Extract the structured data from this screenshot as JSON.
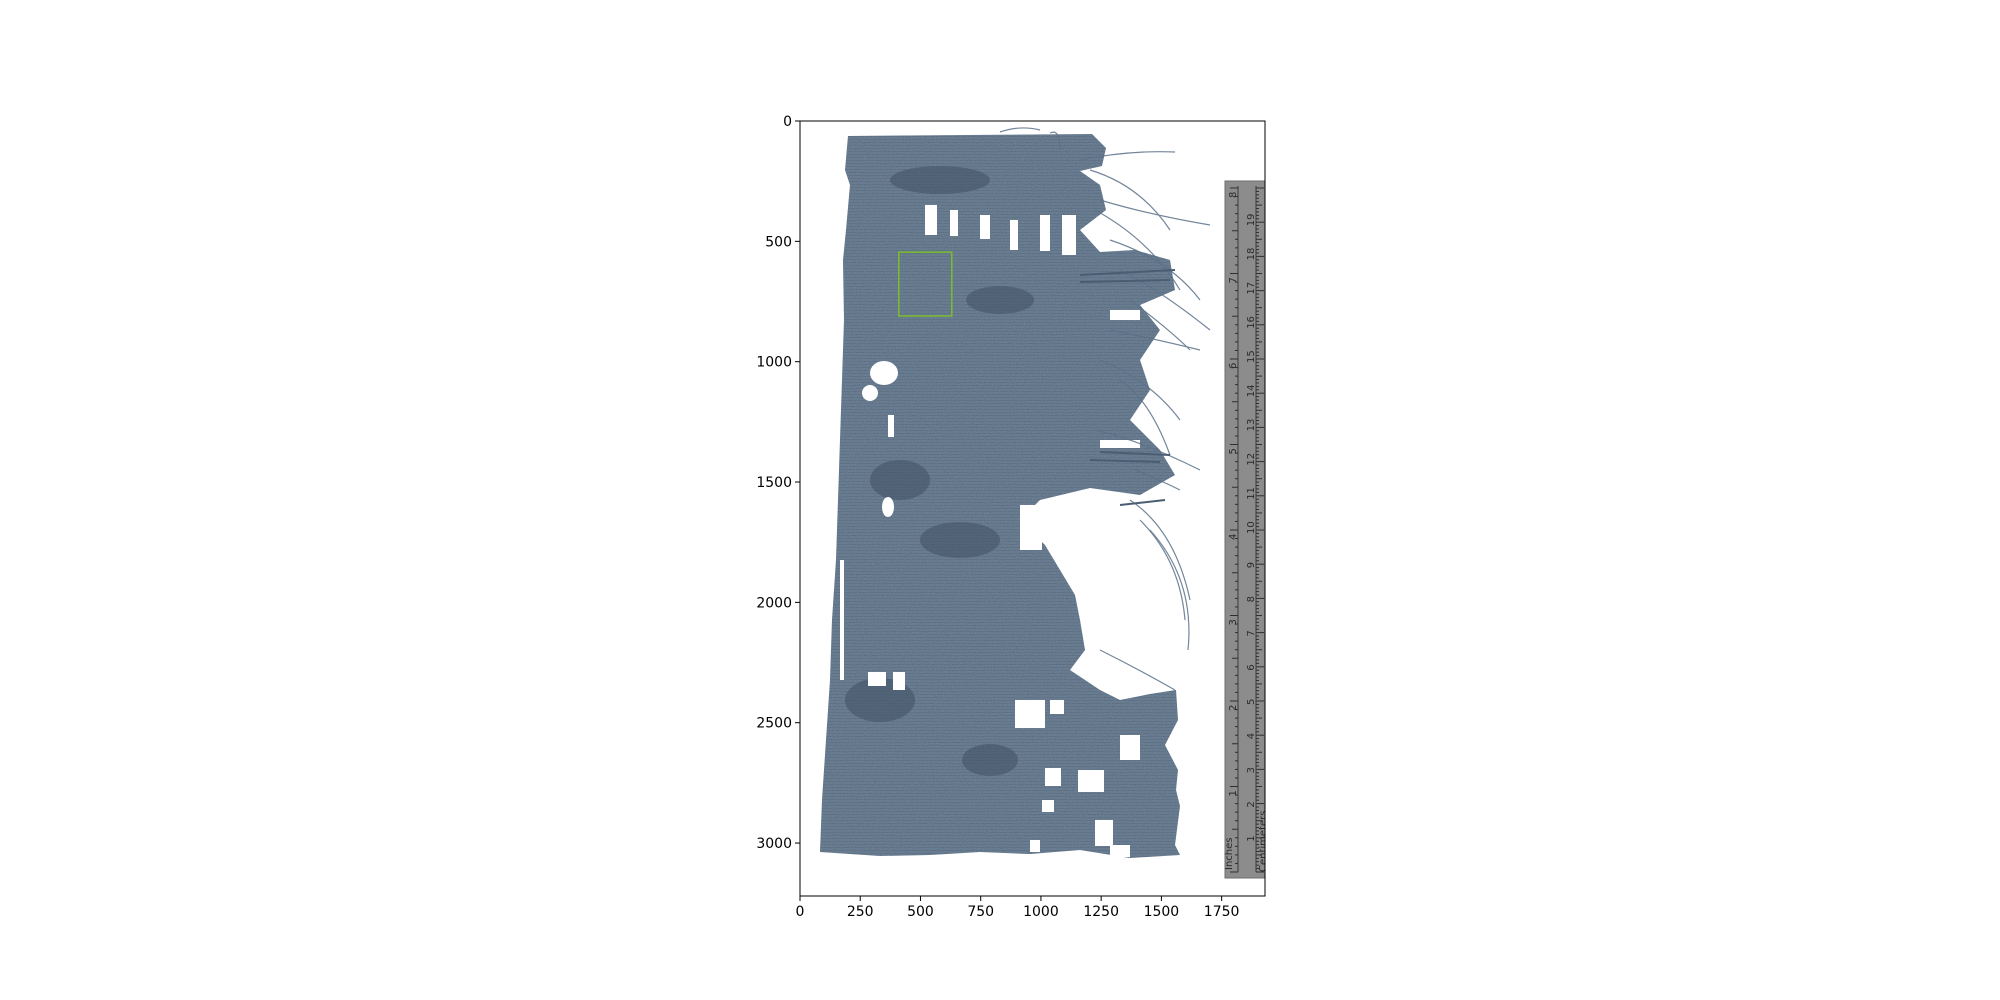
{
  "figure": {
    "x_axis": {
      "range": [
        0,
        1930
      ],
      "ticks": [
        0,
        250,
        500,
        750,
        1000,
        1250,
        1500,
        1750
      ]
    },
    "y_axis": {
      "range": [
        0,
        3220
      ],
      "inverted": true,
      "ticks": [
        0,
        500,
        1000,
        1500,
        2000,
        2500,
        3000
      ]
    },
    "highlight_box": {
      "x": [
        410,
        630
      ],
      "y": [
        545,
        810
      ],
      "color": "#7dbb2e"
    },
    "colors": {
      "papyrus": "#5b7189",
      "papyrus_dark": "#44566b",
      "ruler": "#8a8a8a"
    },
    "ruler": {
      "inches_label": "Inches",
      "centimeters_label": "Centimeters",
      "inch_marks": [
        "1",
        "2",
        "3",
        "4",
        "5",
        "6",
        "7",
        "8"
      ],
      "cm_marks": [
        "1",
        "2",
        "3",
        "4",
        "5",
        "6",
        "7",
        "8",
        "9",
        "10",
        "11",
        "12",
        "13",
        "14",
        "15",
        "16",
        "17",
        "18",
        "19"
      ]
    }
  }
}
